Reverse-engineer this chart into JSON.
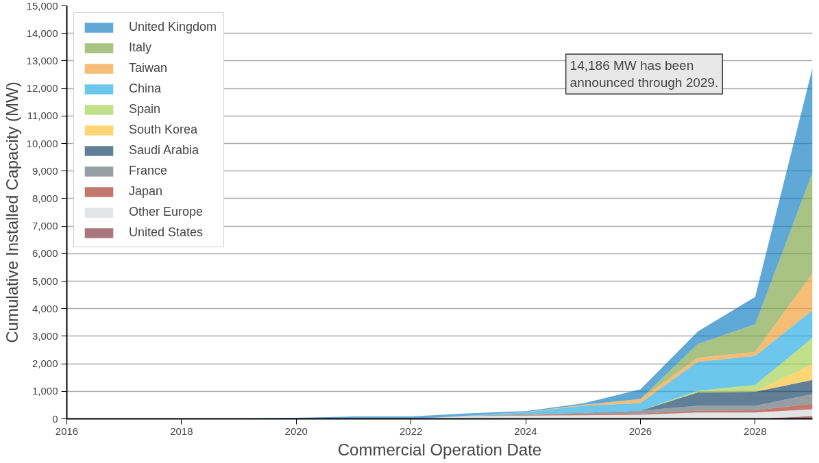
{
  "chart_data": {
    "type": "area",
    "stacked": true,
    "xlabel": "Commercial Operation Date",
    "ylabel": "Cumulative Installed Capacity (MW)",
    "x": [
      2016,
      2017,
      2018,
      2019,
      2020,
      2021,
      2022,
      2023,
      2024,
      2025,
      2026,
      2027,
      2028,
      2029
    ],
    "xlim": [
      2016,
      2029
    ],
    "xticks": [
      2016,
      2018,
      2020,
      2022,
      2024,
      2026,
      2028
    ],
    "ylim": [
      0,
      15000
    ],
    "yticks": [
      {
        "value": 0,
        "label": "0"
      },
      {
        "value": 1000,
        "label": "1,000"
      },
      {
        "value": 2000,
        "label": "2,000"
      },
      {
        "value": 3000,
        "label": "3,000"
      },
      {
        "value": 4000,
        "label": "4,000"
      },
      {
        "value": 5000,
        "label": "5,000"
      },
      {
        "value": 6000,
        "label": "6,000"
      },
      {
        "value": 7000,
        "label": "7,000"
      },
      {
        "value": 8000,
        "label": "8,000"
      },
      {
        "value": 9000,
        "label": "9,000"
      },
      {
        "value": 10000,
        "label": "10,000"
      },
      {
        "value": 11000,
        "label": "11,000"
      },
      {
        "value": 12000,
        "label": "12,000"
      },
      {
        "value": 13000,
        "label": "13,000"
      },
      {
        "value": 14000,
        "label": "14,000"
      },
      {
        "value": 15000,
        "label": "15,000"
      }
    ],
    "grid": "y",
    "legend": "top left",
    "annotations": [
      "14,186 MW has been\nannounced through 2029."
    ],
    "series": [
      {
        "name": "United States",
        "color": "#7f2d3a",
        "values": [
          0,
          0,
          0,
          0,
          0,
          0,
          0,
          0,
          0,
          0,
          0,
          0,
          0,
          100
        ]
      },
      {
        "name": "Other Europe",
        "color": "#d2d5d8",
        "values": [
          0,
          0,
          0,
          0,
          0,
          0,
          0,
          100,
          120,
          130,
          150,
          230,
          230,
          250
        ]
      },
      {
        "name": "Japan",
        "color": "#a3301f",
        "values": [
          0,
          0,
          0,
          0,
          0,
          0,
          0,
          0,
          20,
          40,
          40,
          70,
          80,
          200
        ]
      },
      {
        "name": "France",
        "color": "#5f6c75",
        "values": [
          0,
          0,
          0,
          0,
          0,
          0,
          0,
          10,
          30,
          50,
          110,
          170,
          160,
          350
        ]
      },
      {
        "name": "Saudi Arabia",
        "color": "#0d3c61",
        "values": [
          0,
          0,
          0,
          0,
          0,
          0,
          0,
          0,
          0,
          0,
          0,
          490,
          510,
          510
        ]
      },
      {
        "name": "South Korea",
        "color": "#fcbf2b",
        "values": [
          0,
          0,
          0,
          0,
          0,
          0,
          0,
          0,
          0,
          0,
          0,
          0,
          0,
          580
        ]
      },
      {
        "name": "Spain",
        "color": "#a2cf4a",
        "values": [
          0,
          0,
          0,
          0,
          0,
          0,
          0,
          0,
          0,
          0,
          0,
          60,
          250,
          950
        ]
      },
      {
        "name": "China",
        "color": "#1ea7e1",
        "values": [
          0,
          0,
          0,
          0,
          0,
          0,
          0,
          10,
          70,
          250,
          270,
          1050,
          1050,
          1000
        ]
      },
      {
        "name": "Taiwan",
        "color": "#ef9a2b",
        "values": [
          0,
          0,
          0,
          0,
          0,
          0,
          0,
          0,
          10,
          40,
          150,
          150,
          150,
          1350
        ]
      },
      {
        "name": "Italy",
        "color": "#7ba344",
        "values": [
          0,
          0,
          0,
          0,
          0,
          0,
          0,
          0,
          0,
          0,
          0,
          500,
          1000,
          3650
        ]
      },
      {
        "name": "United Kingdom",
        "color": "#0a7bc1",
        "values": [
          0,
          5,
          10,
          15,
          40,
          85,
          90,
          80,
          30,
          50,
          350,
          450,
          1000,
          3800
        ]
      }
    ]
  }
}
